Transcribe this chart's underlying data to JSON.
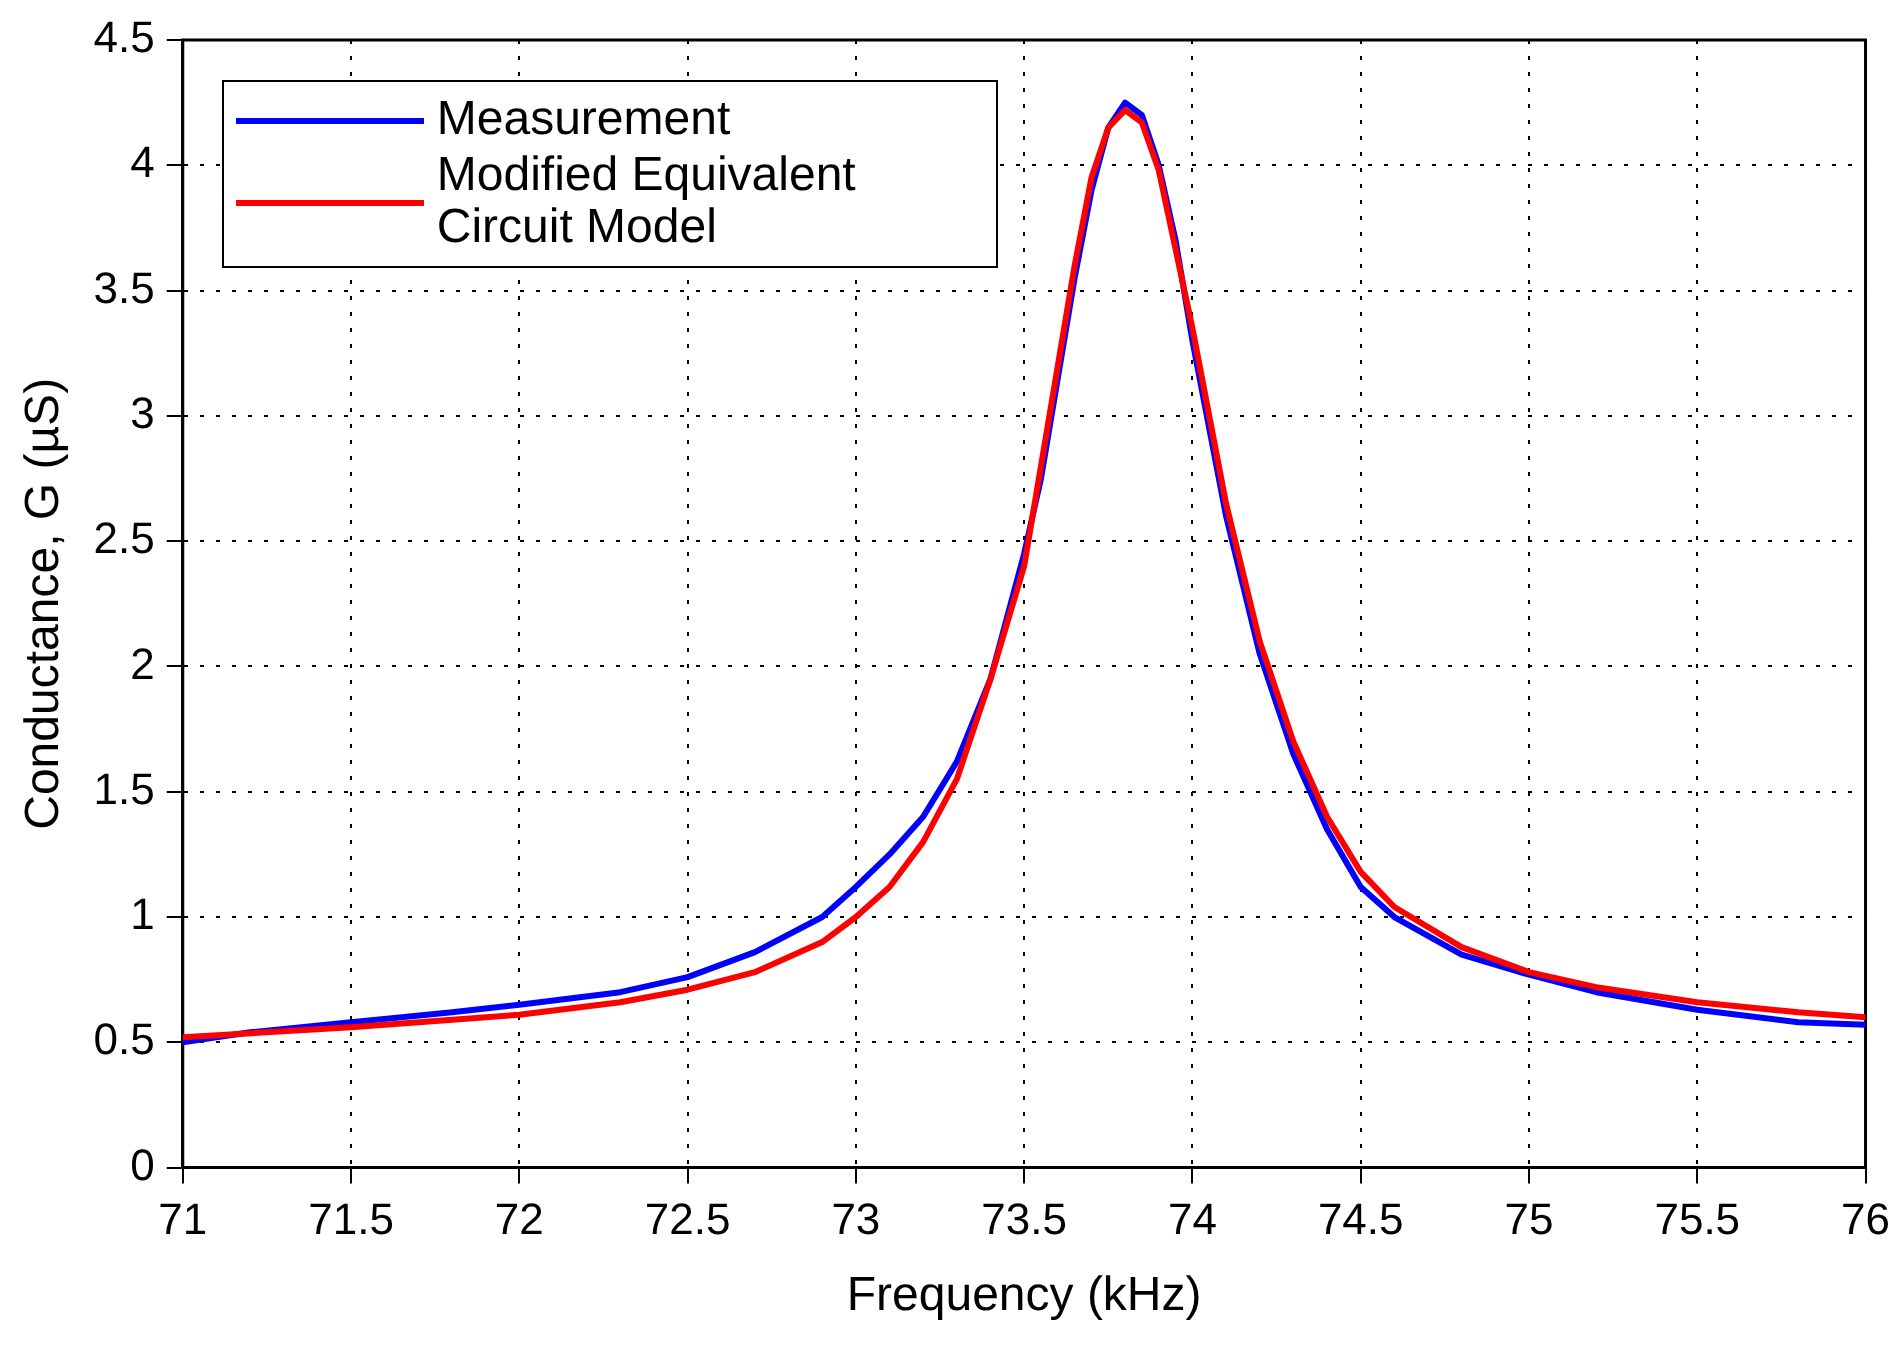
{
  "chart_data": {
    "type": "line",
    "xlabel": "Frequency (kHz)",
    "ylabel": "Conductance, G (µS)",
    "xlim": [
      71,
      76
    ],
    "xticks": [
      71,
      71.5,
      72,
      72.5,
      73,
      73.5,
      74,
      74.5,
      75,
      75.5,
      76
    ],
    "ylim": [
      0,
      4.5
    ],
    "yticks": [
      0,
      0.5,
      1,
      1.5,
      2,
      2.5,
      3,
      3.5,
      4,
      4.5
    ],
    "grid": true,
    "legend": "top left",
    "marker": "none",
    "line_style": "solid",
    "series": [
      {
        "name": "Measurement",
        "color": "#0000ff",
        "x": [
          71.0,
          71.2,
          71.5,
          71.8,
          72.0,
          72.3,
          72.5,
          72.7,
          72.9,
          73.0,
          73.1,
          73.2,
          73.3,
          73.4,
          73.5,
          73.55,
          73.6,
          73.65,
          73.7,
          73.75,
          73.8,
          73.85,
          73.9,
          73.95,
          74.0,
          74.05,
          74.1,
          74.2,
          74.3,
          74.4,
          74.5,
          74.6,
          74.8,
          75.0,
          75.2,
          75.5,
          75.8,
          76.0
        ],
        "values": [
          0.5,
          0.54,
          0.58,
          0.62,
          0.65,
          0.7,
          0.76,
          0.86,
          1.0,
          1.12,
          1.25,
          1.4,
          1.62,
          1.95,
          2.45,
          2.75,
          3.15,
          3.55,
          3.9,
          4.15,
          4.25,
          4.2,
          4.0,
          3.7,
          3.3,
          2.95,
          2.6,
          2.05,
          1.65,
          1.35,
          1.12,
          1.0,
          0.85,
          0.77,
          0.7,
          0.63,
          0.58,
          0.57
        ]
      },
      {
        "name": "Modified Equivalent Circuit Model",
        "color": "#ff0000",
        "x": [
          71.0,
          71.5,
          72.0,
          72.3,
          72.5,
          72.7,
          72.9,
          73.0,
          73.1,
          73.2,
          73.3,
          73.4,
          73.5,
          73.55,
          73.6,
          73.65,
          73.7,
          73.75,
          73.8,
          73.85,
          73.9,
          74.0,
          74.1,
          74.2,
          74.3,
          74.4,
          74.5,
          74.6,
          74.8,
          75.0,
          75.2,
          75.5,
          75.8,
          76.0
        ],
        "values": [
          0.52,
          0.56,
          0.61,
          0.66,
          0.71,
          0.78,
          0.9,
          1.0,
          1.12,
          1.3,
          1.55,
          1.95,
          2.4,
          2.8,
          3.2,
          3.6,
          3.95,
          4.15,
          4.22,
          4.17,
          3.98,
          3.35,
          2.65,
          2.1,
          1.7,
          1.4,
          1.18,
          1.04,
          0.88,
          0.78,
          0.72,
          0.66,
          0.62,
          0.6
        ]
      }
    ]
  }
}
